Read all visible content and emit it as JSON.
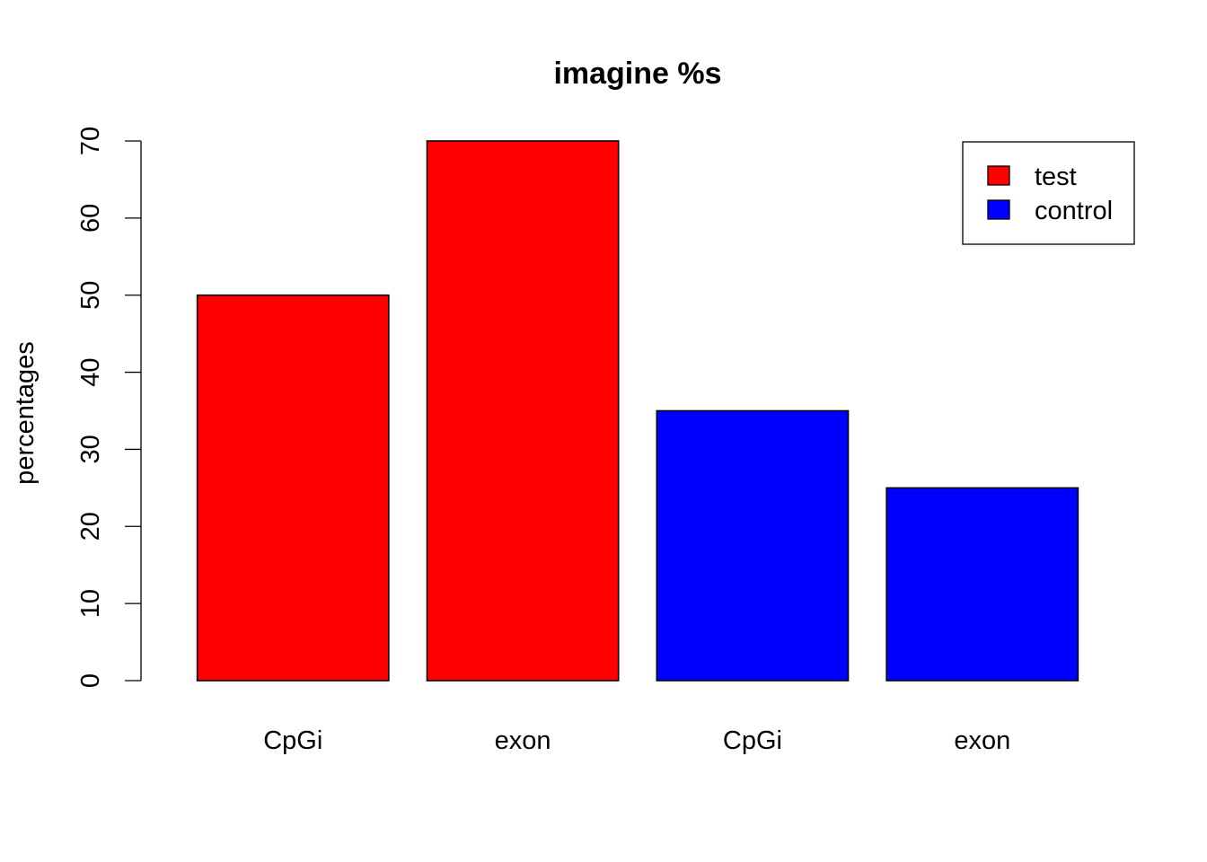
{
  "chart_data": {
    "type": "bar",
    "title": "imagine %s",
    "xlabel": "",
    "ylabel": "percentages",
    "ylim": [
      0,
      70
    ],
    "yticks": [
      0,
      10,
      20,
      30,
      40,
      50,
      60,
      70
    ],
    "categories": [
      "CpGi",
      "exon",
      "CpGi",
      "exon"
    ],
    "values": [
      50,
      70,
      35,
      25
    ],
    "bar_colors": [
      "#ff0000",
      "#ff0000",
      "#0000ff",
      "#0000ff"
    ],
    "legend": {
      "position": "top-right",
      "entries": [
        {
          "label": "test",
          "color": "#ff0000"
        },
        {
          "label": "control",
          "color": "#0000ff"
        }
      ]
    },
    "grid": false
  }
}
